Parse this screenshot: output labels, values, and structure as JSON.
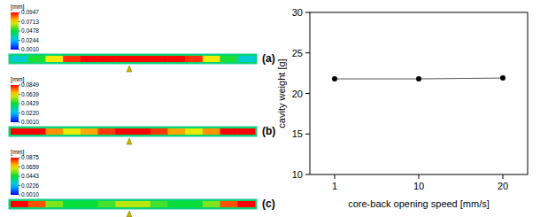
{
  "contour_plots": [
    {
      "label": "(a)",
      "unit": "[mm]",
      "legend_values": [
        0.0947,
        0.0713,
        0.0478,
        0.0244,
        {
          "value": 0.001,
          "label": "0.0010"
        }
      ],
      "profile": [
        0.03,
        0.05,
        0.07,
        0.09,
        0.094,
        0.094,
        0.094,
        0.094,
        0.094,
        0.094,
        0.09,
        0.07,
        0.05,
        0.03
      ]
    },
    {
      "label": "(b)",
      "unit": "[mm]",
      "legend_values": [
        0.0849,
        0.0639,
        0.0429,
        {
          "value": 0.022,
          "label": "0.0220"
        },
        {
          "value": 0.001,
          "label": "0.0010"
        }
      ],
      "profile": [
        0.085,
        0.085,
        0.072,
        0.062,
        0.07,
        0.08,
        0.085,
        0.085,
        0.08,
        0.07,
        0.062,
        0.072,
        0.085,
        0.085
      ]
    },
    {
      "label": "(c)",
      "unit": "[mm]",
      "legend_values": [
        0.0875,
        0.0659,
        0.0443,
        0.0226,
        {
          "value": 0.001,
          "label": "0.0010"
        }
      ],
      "profile": [
        0.0875,
        0.08,
        0.055,
        0.045,
        0.045,
        0.05,
        0.06,
        0.06,
        0.05,
        0.045,
        0.045,
        0.055,
        0.08,
        0.0875
      ]
    }
  ],
  "chart_data": {
    "type": "line",
    "categories": [
      "1",
      "10",
      "20"
    ],
    "values": [
      21.8,
      21.8,
      21.9
    ],
    "color": "#555555",
    "marker": "circle",
    "x_label": "core-back opening speed [mm/s]",
    "y_label": "cavity weight [g]",
    "ylim": [
      10,
      30
    ],
    "yticks": [
      10,
      15,
      20,
      25,
      30
    ]
  }
}
